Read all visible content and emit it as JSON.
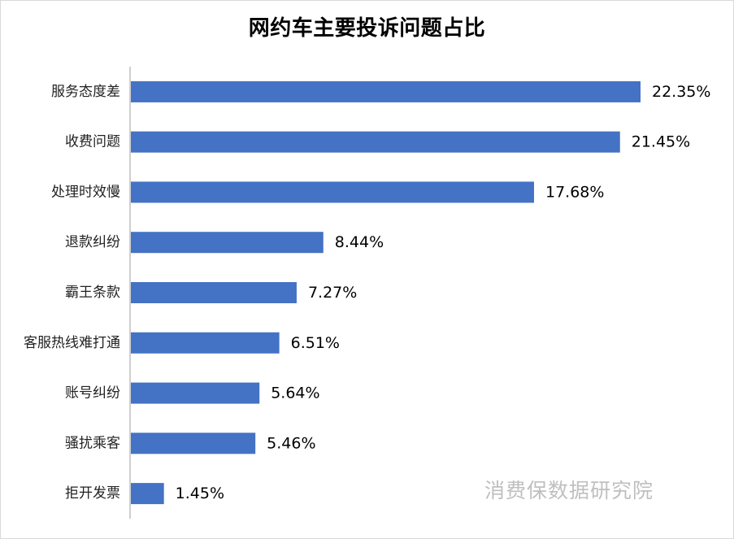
{
  "chart_data": {
    "type": "bar",
    "orientation": "horizontal",
    "title": "网约车主要投诉问题占比",
    "categories": [
      "服务态度差",
      "收费问题",
      "处理时效慢",
      "退款纠纷",
      "霸王条款",
      "客服热线难打通",
      "账号纠纷",
      "骚扰乘客",
      "拒开发票"
    ],
    "values": [
      22.35,
      21.45,
      17.68,
      8.44,
      7.27,
      6.51,
      5.64,
      5.46,
      1.45
    ],
    "value_labels": [
      "22.35%",
      "21.45%",
      "17.68%",
      "8.44%",
      "7.27%",
      "6.51%",
      "5.64%",
      "5.46%",
      "1.45%"
    ],
    "unit": "%",
    "xlim": [
      0,
      22.35
    ],
    "grid": false,
    "legend": "none",
    "bar_color": "#4472c4",
    "axis_color": "#bfbfbf"
  },
  "watermark": "消费保数据研究院"
}
